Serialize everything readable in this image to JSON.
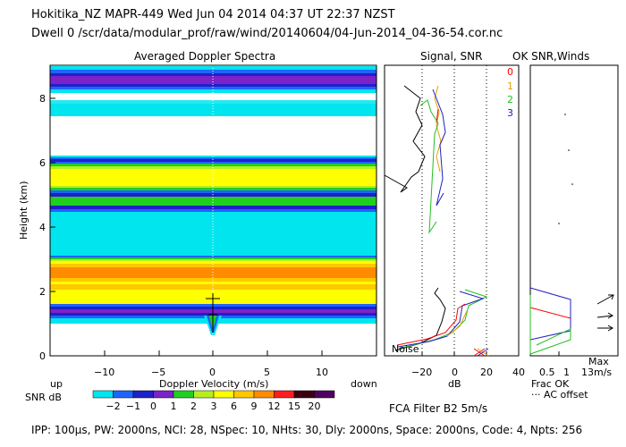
{
  "header": {
    "line1": "Hokitika_NZ  MAPR-449  Wed Jun 04 2014 04:37 UT 22:37 NZST",
    "line2": "Dwell  0   /scr/data/modular_prof/raw/wind/20140604/04-Jun-2014_04-36-54.cor.nc"
  },
  "panels": {
    "spectra_title": "Averaged Doppler Spectra",
    "signal_title": "Signal, SNR",
    "winds_title": "OK SNR,Winds"
  },
  "axes": {
    "height_label": "Height (km)",
    "height_ticks": [
      "0",
      "2",
      "4",
      "6",
      "8"
    ],
    "velocity_label": "Doppler Velocity (m/s)",
    "velocity_ticks": [
      "−10",
      "−5",
      "0",
      "5",
      "10"
    ],
    "up_label": "up",
    "down_label": "down",
    "db_label": "dB",
    "db_ticks": [
      "−20",
      "0",
      "20",
      "40"
    ],
    "frac_ticks": [
      "0.5",
      "1"
    ],
    "noise_label": "Noise",
    "frac_ok_label": "Frac OK",
    "ac_offset_label": "··· AC offset",
    "max_label": "Max",
    "max_value": "13m/s"
  },
  "colorbar": {
    "label": "SNR dB",
    "values": [
      "−2",
      "−1",
      "0",
      "1",
      "2",
      "3",
      "6",
      "9",
      "12",
      "15",
      "20"
    ],
    "colors": [
      "#00e5ee",
      "#1e64ff",
      "#2020c8",
      "#7b22c8",
      "#20d020",
      "#b4f020",
      "#ffff00",
      "#ffc800",
      "#ff8c00",
      "#ff1e1e",
      "#3c0010",
      "#500060"
    ]
  },
  "series_legend": [
    {
      "label": "0",
      "color": "#ff0000"
    },
    {
      "label": "1",
      "color": "#e6a000"
    },
    {
      "label": "2",
      "color": "#20c020"
    },
    {
      "label": "3",
      "color": "#2020c0"
    }
  ],
  "footer": {
    "filter": "FCA Filter B2  5m/s",
    "params": "IPP: 100µs,  PW: 2000ns,  NCI:  28,  NSpec: 10,  NHts: 30,  Dly: 2000ns,  Space: 2000ns,  Code: 4,  Npts: 256"
  }
}
